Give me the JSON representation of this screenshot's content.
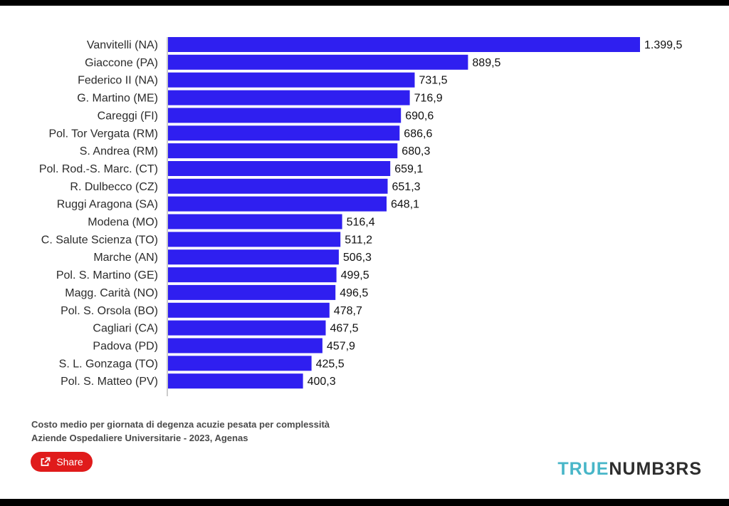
{
  "chart_data": {
    "type": "bar",
    "orientation": "horizontal",
    "categories": [
      "Vanvitelli (NA)",
      "Giaccone (PA)",
      "Federico II (NA)",
      "G. Martino (ME)",
      "Careggi (FI)",
      "Pol. Tor Vergata (RM)",
      "S. Andrea (RM)",
      "Pol. Rod.-S. Marc. (CT)",
      "R. Dulbecco (CZ)",
      "Ruggi Aragona (SA)",
      "Modena (MO)",
      "C. Salute Scienza (TO)",
      "Marche (AN)",
      "Pol. S. Martino (GE)",
      "Magg. Carità (NO)",
      "Pol. S. Orsola (BO)",
      "Cagliari (CA)",
      "Padova (PD)",
      "S. L. Gonzaga (TO)",
      "Pol. S. Matteo (PV)"
    ],
    "values": [
      1399.5,
      889.5,
      731.5,
      716.9,
      690.6,
      686.6,
      680.3,
      659.1,
      651.3,
      648.1,
      516.4,
      511.2,
      506.3,
      499.5,
      496.5,
      478.7,
      467.5,
      457.9,
      425.5,
      400.3
    ],
    "value_labels": [
      "1.399,5",
      "889,5",
      "731,5",
      "716,9",
      "690,6",
      "686,6",
      "680,3",
      "659,1",
      "651,3",
      "648,1",
      "516,4",
      "511,2",
      "506,3",
      "499,5",
      "496,5",
      "478,7",
      "467,5",
      "457,9",
      "425,5",
      "400,3"
    ],
    "bar_color": "#2f1ff0",
    "xlim": [
      0,
      1399.5
    ],
    "grid": false,
    "caption_line1": "Costo medio per giornata di degenza acuzie pesata per complessità",
    "caption_line2": "Aziende Ospedaliere Universitarie - 2023, Agenas"
  },
  "share": {
    "label": "Share",
    "icon": "share-icon",
    "color": "#e01b1b"
  },
  "brand": {
    "part1": "TRUE",
    "part2": "NUMB3RS",
    "color1": "#48b6c8",
    "color2": "#2d2d2d"
  }
}
